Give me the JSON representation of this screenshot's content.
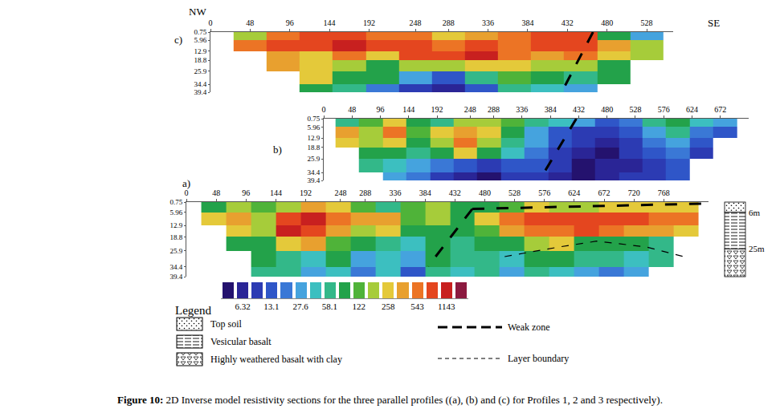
{
  "chart_data": {
    "type": "heatmap",
    "direction_labels": [
      "NW",
      "SE"
    ],
    "sections": [
      {
        "label": "a)",
        "xlim": [
          0,
          840
        ],
        "xticks": [
          0,
          48,
          96,
          144,
          192,
          248,
          288,
          336,
          384,
          432,
          480,
          528,
          576,
          624,
          672,
          720,
          768
        ],
        "ylim": [
          0.75,
          39.4
        ],
        "yticks": [
          0.75,
          5.96,
          12.9,
          18.8,
          25.9,
          34.4,
          39.4
        ],
        "x": [
          24,
          64,
          104,
          144,
          184,
          224,
          264,
          304,
          344,
          384,
          424,
          464,
          504,
          544,
          584,
          624,
          664,
          704,
          744,
          784,
          824
        ],
        "y": [
          0.75,
          5.96,
          12.9,
          18.8,
          25.9,
          34.4,
          39.4
        ],
        "z": [
          [
            90,
            150,
            120,
            200,
            350,
            300,
            110,
            70,
            130,
            160,
            80,
            90,
            140,
            250,
            200,
            180,
            220,
            260,
            300,
            250
          ],
          [
            300,
            400,
            150,
            900,
            1100,
            500,
            350,
            400,
            120,
            200,
            100,
            300,
            600,
            800,
            700,
            900,
            800,
            700,
            600,
            500
          ],
          [
            null,
            300,
            200,
            1000,
            800,
            400,
            180,
            250,
            100,
            90,
            80,
            110,
            350,
            600,
            500,
            700,
            600,
            450,
            350,
            300
          ],
          [
            null,
            100,
            90,
            250,
            400,
            120,
            80,
            70,
            40,
            90,
            70,
            80,
            90,
            200,
            250,
            100,
            90,
            80,
            60,
            null
          ],
          [
            null,
            null,
            80,
            70,
            40,
            90,
            30,
            45,
            25,
            80,
            50,
            70,
            45,
            80,
            90,
            70,
            50,
            40,
            50,
            null
          ],
          [
            null,
            null,
            60,
            50,
            30,
            40,
            20,
            35,
            15,
            60,
            40,
            50,
            30,
            50,
            40,
            30,
            20,
            30,
            null,
            null
          ]
        ],
        "lines": [
          {
            "x": [
              460,
              389
            ],
            "y": [
              4.3,
              34
            ],
            "line_style": "longdash"
          },
          {
            "x": [
              460,
              838
            ],
            "y": [
              4.3,
              1.5
            ],
            "line_style": "longdash"
          },
          {
            "x": [
              512,
              600,
              660,
              740,
              800
            ],
            "y": [
              29,
              24,
              21,
              24,
              29
            ],
            "line_style": "dash"
          }
        ]
      },
      {
        "label": "b)",
        "xlim": [
          0,
          720
        ],
        "xticks": [
          0,
          48,
          96,
          144,
          192,
          248,
          288,
          336,
          384,
          432,
          480,
          528,
          576,
          624,
          672
        ],
        "ylim": [
          0.75,
          39.4
        ],
        "yticks": [
          0.75,
          5.96,
          12.9,
          18.8,
          25.9,
          34.4,
          39.4
        ],
        "x": [
          20,
          60,
          100,
          140,
          180,
          220,
          260,
          300,
          340,
          380,
          420,
          460,
          500,
          540,
          580,
          620,
          660,
          700
        ],
        "y": [
          0.75,
          5.96,
          12.9,
          18.8,
          25.9,
          34.4,
          39.4
        ],
        "z": [
          [
            60,
            130,
            300,
            90,
            50,
            200,
            150,
            120,
            60,
            40,
            25,
            15,
            20,
            60,
            90,
            40,
            25
          ],
          [
            400,
            200,
            500,
            120,
            300,
            400,
            250,
            80,
            30,
            15,
            10,
            8,
            15,
            30,
            50,
            20,
            15
          ],
          [
            300,
            150,
            250,
            100,
            150,
            500,
            200,
            60,
            25,
            12,
            8,
            6,
            10,
            20,
            30,
            15,
            null
          ],
          [
            null,
            80,
            100,
            60,
            90,
            250,
            80,
            40,
            20,
            10,
            6,
            5,
            8,
            12,
            20,
            10,
            null
          ],
          [
            null,
            50,
            40,
            30,
            20,
            12,
            8,
            15,
            12,
            8,
            5,
            6,
            7,
            10,
            15,
            null,
            null
          ],
          [
            null,
            null,
            30,
            20,
            10,
            6,
            5,
            8,
            10,
            7,
            5,
            6,
            8,
            10,
            12,
            null,
            null
          ]
        ],
        "lines": [
          {
            "x": [
              428,
              371
            ],
            "y": [
              0.75,
              35.9
            ],
            "line_style": "longdash"
          }
        ]
      },
      {
        "label": "c)",
        "xlim": [
          0,
          560
        ],
        "xticks": [
          0,
          48,
          96,
          144,
          192,
          248,
          288,
          336,
          384,
          432,
          480,
          528
        ],
        "ylim": [
          0.75,
          39.4
        ],
        "yticks": [
          0.75,
          5.96,
          12.9,
          18.8,
          25.9,
          34.4,
          39.4
        ],
        "x": [
          28,
          68,
          108,
          148,
          188,
          228,
          268,
          308,
          348,
          388,
          428,
          468,
          508,
          548
        ],
        "y": [
          0.75,
          5.96,
          12.9,
          18.8,
          25.9,
          34.4,
          39.4
        ],
        "z": [
          [
            200,
            500,
            700,
            900,
            600,
            500,
            300,
            400,
            600,
            800,
            700,
            100,
            30
          ],
          [
            600,
            900,
            800,
            1100,
            700,
            900,
            600,
            800,
            500,
            700,
            900,
            400,
            200
          ],
          [
            null,
            400,
            250,
            500,
            300,
            700,
            900,
            1000,
            600,
            400,
            500,
            300,
            150
          ],
          [
            null,
            400,
            300,
            150,
            100,
            150,
            200,
            250,
            300,
            200,
            150,
            100,
            null
          ],
          [
            null,
            null,
            300,
            100,
            80,
            30,
            15,
            60,
            120,
            90,
            70,
            80,
            null
          ],
          [
            null,
            null,
            90,
            60,
            20,
            8,
            6,
            12,
            50,
            40,
            30,
            null,
            null
          ]
        ],
        "lines": [
          {
            "x": [
              463,
              425
            ],
            "y": [
              0.75,
              39.4
            ],
            "line_style": "longdash"
          }
        ]
      }
    ],
    "colorbar": {
      "range": [
        3.62,
        1996
      ],
      "ticks": [
        6.32,
        13.1,
        27.6,
        58.1,
        122,
        258,
        543,
        1143
      ],
      "colors": [
        "#24126e",
        "#2a2596",
        "#2c3bb3",
        "#2f56c8",
        "#3a78d6",
        "#45a3de",
        "#3cbfc0",
        "#33b889",
        "#23a24a",
        "#4fb339",
        "#a6cc3a",
        "#e4c93a",
        "#e8a02f",
        "#ec7425",
        "#e4461f",
        "#c8201f",
        "#8c1a40"
      ]
    },
    "lithology_legend": {
      "title": "Legend",
      "layers": [
        {
          "name": "Top soil"
        },
        {
          "name": "Vesicular basalt"
        },
        {
          "name": "Highly weathered basalt with clay"
        }
      ],
      "lines": [
        {
          "name": "Weak zone",
          "line_style": "longdash"
        },
        {
          "name": "Layer boundary",
          "line_style": "dash"
        }
      ]
    },
    "borehole": {
      "depths": [
        {
          "value": 6,
          "label": "6m"
        },
        {
          "value": 25,
          "label": "25m"
        }
      ]
    },
    "caption": {
      "label": "Figure 10:",
      "text": "2D Inverse model resistivity sections for the three parallel profiles ((a), (b) and (c) for Profiles 1, 2 and 3 respectively)."
    }
  }
}
